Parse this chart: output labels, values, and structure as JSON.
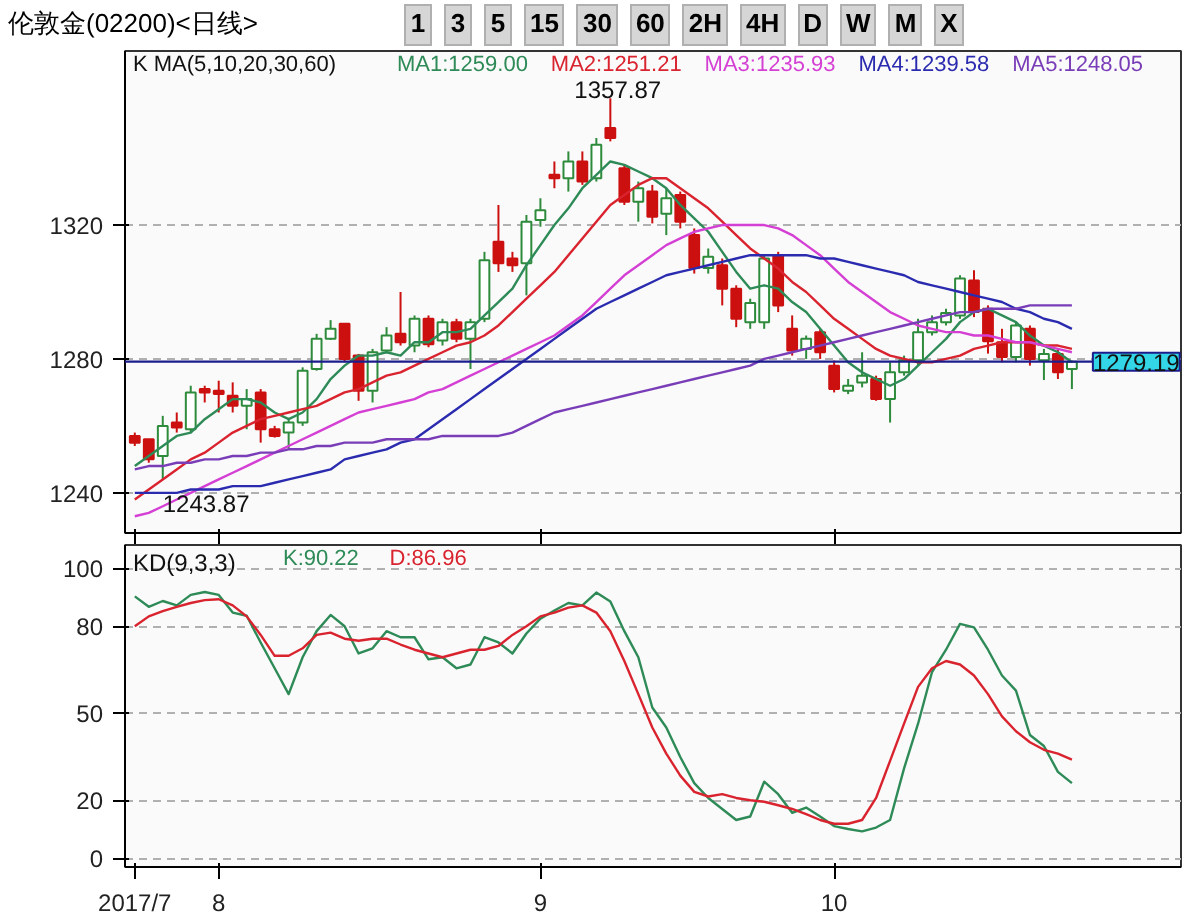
{
  "chart_data": [
    {
      "type": "candlestick",
      "title": "伦敦金(02200)<日线>",
      "subtitle": "K  MA(5,10,20,30,60)",
      "categories": [
        "2017/7",
        null,
        null,
        null,
        null,
        null,
        "8",
        null,
        null,
        null,
        null,
        null,
        null,
        null,
        null,
        null,
        null,
        null,
        null,
        null,
        null,
        null,
        null,
        null,
        null,
        null,
        null,
        null,
        null,
        "9",
        null,
        null,
        null,
        null,
        null,
        null,
        null,
        null,
        null,
        null,
        null,
        null,
        null,
        null,
        null,
        null,
        null,
        null,
        null,
        null,
        "10",
        null,
        null,
        null,
        null,
        null,
        null,
        null,
        null,
        null,
        null,
        null,
        null,
        null,
        null,
        null,
        null,
        null
      ],
      "ohlc": [
        [
          1257,
          1258,
          1254,
          1255
        ],
        [
          1256,
          1256,
          1249,
          1250
        ],
        [
          1251,
          1263,
          1243.87,
          1260
        ],
        [
          1261,
          1264,
          1258,
          1259.5
        ],
        [
          1259,
          1272,
          1258,
          1270
        ],
        [
          1271,
          1272,
          1267,
          1270
        ],
        [
          1270.5,
          1273.5,
          1264,
          1269.5
        ],
        [
          1269,
          1273,
          1264,
          1266
        ],
        [
          1266,
          1271,
          1259,
          1268
        ],
        [
          1270,
          1271,
          1255,
          1259
        ],
        [
          1259,
          1260,
          1256.5,
          1257
        ],
        [
          1258,
          1262,
          1253,
          1261
        ],
        [
          1261,
          1277.5,
          1260,
          1276.5
        ],
        [
          1277,
          1287.5,
          1276.5,
          1286
        ],
        [
          1286,
          1291.6,
          1285.7,
          1289
        ],
        [
          1290.5,
          1290.5,
          1279,
          1280
        ],
        [
          1281,
          1281.5,
          1267.5,
          1270.5
        ],
        [
          1270.5,
          1283,
          1267,
          1282
        ],
        [
          1282.5,
          1289.5,
          1281.7,
          1287
        ],
        [
          1287.5,
          1300,
          1284,
          1285
        ],
        [
          1284,
          1293,
          1282,
          1292
        ],
        [
          1292,
          1293,
          1283.5,
          1284.4
        ],
        [
          1285.5,
          1292,
          1284,
          1291
        ],
        [
          1291,
          1292,
          1285,
          1286
        ],
        [
          1286,
          1292,
          1277,
          1291
        ],
        [
          1292,
          1312,
          1291,
          1309.5
        ],
        [
          1315,
          1326,
          1306,
          1308.6
        ],
        [
          1310,
          1312,
          1306,
          1308
        ],
        [
          1308.6,
          1323,
          1299,
          1321
        ],
        [
          1321.5,
          1328,
          1319.5,
          1324.4
        ],
        [
          1335,
          1339,
          1331,
          1334
        ],
        [
          1334,
          1342,
          1330,
          1339
        ],
        [
          1339,
          1342,
          1332,
          1333
        ],
        [
          1334,
          1346,
          1333,
          1344
        ],
        [
          1349,
          1357.87,
          1345,
          1346
        ],
        [
          1337,
          1338,
          1326,
          1327
        ],
        [
          1327,
          1333,
          1321,
          1331
        ],
        [
          1330,
          1332,
          1320.5,
          1322.5
        ],
        [
          1323.4,
          1331,
          1317,
          1328
        ],
        [
          1329,
          1330,
          1319,
          1321
        ],
        [
          1317,
          1319,
          1305.5,
          1307.2
        ],
        [
          1307.2,
          1313,
          1305.5,
          1310.5
        ],
        [
          1308,
          1310,
          1296,
          1301
        ],
        [
          1301,
          1302,
          1289.5,
          1292
        ],
        [
          1291,
          1298,
          1289,
          1296.7
        ],
        [
          1291,
          1311,
          1289,
          1310
        ],
        [
          1311,
          1312,
          1294,
          1296
        ],
        [
          1289,
          1293,
          1281,
          1282.5
        ],
        [
          1283,
          1287,
          1280,
          1286
        ],
        [
          1288,
          1289,
          1280,
          1282
        ],
        [
          1278,
          1279.5,
          1270,
          1271
        ],
        [
          1270.5,
          1274,
          1269.5,
          1272
        ],
        [
          1273,
          1282,
          1271.5,
          1275
        ],
        [
          1274,
          1275,
          1267.5,
          1268
        ],
        [
          1268,
          1279,
          1261,
          1276
        ],
        [
          1276,
          1281,
          1275,
          1279.6
        ],
        [
          1279.6,
          1292,
          1278,
          1288
        ],
        [
          1288,
          1293,
          1287,
          1291
        ],
        [
          1291,
          1295,
          1290,
          1293.7
        ],
        [
          1293,
          1305,
          1292,
          1304
        ],
        [
          1303.4,
          1306.5,
          1292.5,
          1294
        ],
        [
          1295,
          1296,
          1281.6,
          1285.3
        ],
        [
          1285,
          1289,
          1279,
          1280.6
        ],
        [
          1280.6,
          1291,
          1279,
          1290
        ],
        [
          1289,
          1290,
          1278,
          1280
        ],
        [
          1279.6,
          1283,
          1273.7,
          1281.5
        ],
        [
          1281.5,
          1283,
          1274,
          1276
        ],
        [
          1277,
          1279.5,
          1271,
          1279.19
        ]
      ],
      "series": [
        {
          "name": "MA1:1259.00",
          "type": "line",
          "color": "#2e8b57",
          "values": [
            1248,
            1251,
            1254,
            1257,
            1258,
            1262,
            1265,
            1268,
            1268,
            1267,
            1264,
            1262,
            1264,
            1268,
            1274,
            1278,
            1281,
            1281,
            1282,
            1281,
            1285,
            1285,
            1288,
            1288,
            1289,
            1293,
            1297,
            1301,
            1308,
            1314,
            1320,
            1325,
            1331,
            1335,
            1339,
            1338,
            1336,
            1334,
            1331,
            1326,
            1322,
            1318,
            1312,
            1306,
            1301,
            1302,
            1301,
            1297,
            1294,
            1289,
            1284,
            1279,
            1276,
            1274,
            1272,
            1274,
            1278,
            1282,
            1286,
            1291,
            1294,
            1295,
            1293,
            1291,
            1287,
            1284,
            1282,
            1279
          ]
        },
        {
          "name": "MA2:1251.21",
          "type": "line",
          "color": "#d9232e",
          "values": [
            1238,
            1241,
            1244,
            1247,
            1250,
            1252,
            1255,
            1258,
            1260,
            1262,
            1263,
            1264,
            1265,
            1266,
            1268,
            1270,
            1271,
            1273,
            1275,
            1276,
            1278,
            1280,
            1282,
            1284,
            1285,
            1287,
            1290,
            1294,
            1298,
            1302,
            1306,
            1311,
            1316,
            1321,
            1326,
            1329,
            1332,
            1334,
            1334,
            1331,
            1328,
            1325,
            1321,
            1317,
            1313,
            1310,
            1307,
            1303,
            1300,
            1296,
            1292,
            1289,
            1286,
            1283,
            1281,
            1280,
            1279,
            1279,
            1280,
            1281,
            1283,
            1284,
            1285,
            1285,
            1285,
            1284,
            1284,
            1283
          ]
        },
        {
          "name": "MA3:1235.93",
          "type": "line",
          "color": "#d43fd4",
          "values": [
            1233,
            1234,
            1236,
            1238,
            1240,
            1242,
            1244,
            1246,
            1248,
            1250,
            1252,
            1254,
            1256,
            1258,
            1260,
            1262,
            1264,
            1265,
            1266,
            1267,
            1268,
            1270,
            1271,
            1273,
            1275,
            1277,
            1279,
            1281,
            1283,
            1285,
            1287,
            1290,
            1293,
            1297,
            1301,
            1305,
            1308,
            1311,
            1314,
            1316,
            1318,
            1319,
            1320,
            1320,
            1320,
            1320,
            1319,
            1317,
            1314,
            1311,
            1307,
            1303,
            1300,
            1297,
            1294,
            1292,
            1290,
            1289,
            1288,
            1288,
            1287,
            1287,
            1286,
            1285,
            1285,
            1284,
            1283,
            1282
          ]
        },
        {
          "name": "MA4:1239.58",
          "type": "line",
          "color": "#2b2bb0",
          "values": [
            1240,
            1240,
            1240,
            1240,
            1241,
            1241,
            1241,
            1242,
            1242,
            1242,
            1243,
            1244,
            1245,
            1246,
            1247,
            1250,
            1251,
            1252,
            1253,
            1255,
            1256,
            1259,
            1262,
            1265,
            1268,
            1271,
            1274,
            1277,
            1280,
            1283,
            1286,
            1289,
            1292,
            1295,
            1297,
            1299,
            1301,
            1303,
            1305,
            1306,
            1307,
            1308,
            1309,
            1310,
            1311,
            1311,
            1311,
            1311,
            1311,
            1310,
            1310,
            1309,
            1308,
            1307,
            1306,
            1305,
            1303,
            1302,
            1301,
            1300,
            1299,
            1298,
            1297,
            1295,
            1294,
            1292,
            1291,
            1289
          ]
        },
        {
          "name": "MA5:1248.05",
          "type": "line",
          "color": "#7a3db8",
          "values": [
            1247,
            1248,
            1248,
            1249,
            1249,
            1250,
            1250,
            1251,
            1251,
            1252,
            1252,
            1253,
            1253,
            1254,
            1254,
            1255,
            1255,
            1255,
            1256,
            1256,
            1256,
            1256,
            1257,
            1257,
            1257,
            1257,
            1257,
            1258,
            1260,
            1262,
            1264,
            1265,
            1266,
            1267,
            1268,
            1269,
            1270,
            1271,
            1272,
            1273,
            1274,
            1275,
            1276,
            1277,
            1278,
            1280,
            1281,
            1282,
            1283,
            1284,
            1285,
            1286,
            1287,
            1288,
            1289,
            1290,
            1291,
            1292,
            1293,
            1294,
            1294,
            1295,
            1295,
            1295,
            1296,
            1296,
            1296,
            1296
          ]
        }
      ],
      "ylim": [
        1228,
        1372
      ],
      "yticks": [
        1240,
        1280,
        1320
      ],
      "grid": "y",
      "tick_labels": "y",
      "ref_lines": [
        {
          "axis": "y",
          "value": 1279.19,
          "label": "1279.19",
          "color": "#1c1c8c"
        }
      ],
      "annotations": [
        "1357.87",
        "1243.87",
        "1",
        "3",
        "5",
        "15",
        "30",
        "60",
        "2H",
        "4H",
        "D",
        "W",
        "M",
        "X"
      ]
    },
    {
      "type": "line",
      "title": "KD(9,3,3)",
      "categories": [
        "2017/7",
        null,
        null,
        null,
        null,
        null,
        "8",
        null,
        null,
        null,
        null,
        null,
        null,
        null,
        null,
        null,
        null,
        null,
        null,
        null,
        null,
        null,
        null,
        null,
        null,
        null,
        null,
        null,
        null,
        "9",
        null,
        null,
        null,
        null,
        null,
        null,
        null,
        null,
        null,
        null,
        null,
        null,
        null,
        null,
        null,
        null,
        null,
        null,
        null,
        null,
        "10",
        null,
        null,
        null,
        null,
        null,
        null,
        null,
        null,
        null,
        null,
        null,
        null,
        null,
        null,
        null,
        null,
        null
      ],
      "series": [
        {
          "name": "K:90.22",
          "color": "#2e8b57",
          "values": [
            90.3,
            86.7,
            88.7,
            87.2,
            90.8,
            91.8,
            90.8,
            84.7,
            83.6,
            74.4,
            65.5,
            56.6,
            69.3,
            78.3,
            83.9,
            80,
            70.6,
            72.4,
            78.3,
            76.2,
            76.2,
            68.6,
            69.3,
            65.5,
            66.8,
            76.2,
            74.4,
            70.6,
            77.5,
            82.6,
            85.4,
            88,
            87.2,
            91.6,
            88.5,
            78.3,
            69.3,
            52,
            45.1,
            34.9,
            25.9,
            20.8,
            17,
            13.2,
            14.4,
            26.4,
            22.1,
            15.7,
            17.5,
            14.4,
            11.1,
            10.1,
            9.3,
            10.6,
            13.2,
            31,
            46.4,
            64.2,
            71.9,
            80.8,
            79.6,
            71.9,
            63,
            57.8,
            42.5,
            38.7,
            29.8,
            25.9
          ]
        },
        {
          "name": "D:86.96",
          "color": "#d9232e",
          "values": [
            80,
            83.4,
            85.2,
            86.7,
            88,
            89,
            89.3,
            87.2,
            83.4,
            77,
            69.8,
            69.8,
            72.4,
            77,
            77.8,
            75.7,
            75,
            75.7,
            75.7,
            73.7,
            71.9,
            70.6,
            69.3,
            70.6,
            71.9,
            71.9,
            73.2,
            77,
            80,
            83.4,
            84.7,
            86.4,
            87.2,
            84.7,
            78.3,
            68,
            56.6,
            45.1,
            36.1,
            28.5,
            22.9,
            21.3,
            22.1,
            20.8,
            20,
            19.5,
            18.3,
            17,
            15.2,
            13.2,
            11.9,
            11.9,
            13.2,
            20.8,
            33.6,
            46.4,
            59.1,
            65.5,
            68,
            66.8,
            63,
            56.6,
            48.9,
            43.8,
            40,
            37.4,
            36.1,
            34
          ]
        }
      ],
      "ylim": [
        -3,
        108
      ],
      "yticks": [
        0,
        20,
        50,
        80,
        100
      ],
      "grid": "y"
    }
  ]
}
